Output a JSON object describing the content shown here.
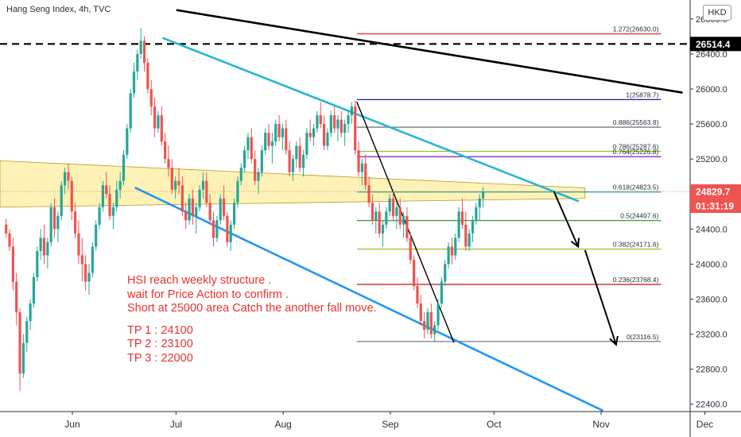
{
  "chart_title": "Hang Seng Index, 4h, TVC",
  "currency_badge": "HKD",
  "current_price": "24829.7",
  "countdown": "01:31:19",
  "marked_level": "26514.4",
  "colors": {
    "bull": "#26a69a",
    "bear": "#ef5350",
    "zone": "#fde87a",
    "upper_channel": "#26b6d0",
    "lower_channel": "#2196f3",
    "trendline": "#000000",
    "annotation": "#e8322b",
    "price_tag": "#ef5350"
  },
  "annotation": {
    "line1": "HSI reach weekly structure .",
    "line2": "wait for Price Action to confirm .",
    "line3": "Short at 25000 area Catch the another fall move.",
    "tp1": "TP 1 : 24100",
    "tp2": "TP 2 : 23100",
    "tp3": "TP 3 : 22000"
  },
  "chart_data": {
    "type": "candlestick",
    "title": "Hang Seng Index, 4h, TVC",
    "y_axis": {
      "min": 22200,
      "max": 26700,
      "ticks": [
        "22400.0",
        "22800.0",
        "23200.0",
        "23600.0",
        "24000.0",
        "24400.0",
        "24800.0",
        "25200.0",
        "25600.0",
        "26000.0",
        "26400.0",
        "26800.0"
      ],
      "tick_values": [
        22400,
        22800,
        23200,
        23600,
        24000,
        24400,
        24800,
        25200,
        25600,
        26000,
        26400,
        26800
      ]
    },
    "x_axis": {
      "labels": [
        "Jun",
        "Jul",
        "Aug",
        "Sep",
        "Oct",
        "Nov",
        "Dec"
      ],
      "label_day_index": [
        10,
        40,
        71,
        102,
        132,
        163,
        193
      ]
    },
    "fibonacci": [
      {
        "label": "1.272(26630.0)",
        "value": 26630.0,
        "color": "#e53935"
      },
      {
        "label": "1(25878.7)",
        "value": 25878.7,
        "color": "#1a237e"
      },
      {
        "label": "0.886(25563.8)",
        "value": 25563.8,
        "color": "#787b86"
      },
      {
        "label": "0.786(25287.6)",
        "value": 25287.6,
        "color": "#9bbf2a"
      },
      {
        "label": "0.764(25226.8)",
        "value": 25226.8,
        "color": "#9c27b0"
      },
      {
        "label": "0.618(24823.5)",
        "value": 24823.5,
        "color": "#26a69a"
      },
      {
        "label": "0.5(24497.6)",
        "value": 24497.6,
        "color": "#43a047"
      },
      {
        "label": "0.382(24171.6)",
        "value": 24171.6,
        "color": "#9bbf2a"
      },
      {
        "label": "0.236(23768.4)",
        "value": 23768.4,
        "color": "#c62828"
      },
      {
        "label": "0(23116.5)",
        "value": 23116.5,
        "color": "#787b86"
      }
    ],
    "fib_start_day": 102,
    "fib_end_day": 190,
    "dashed_level": 26514.4,
    "current_price": 24829.7,
    "resistance_zone": [
      {
        "day": 0,
        "top": 25180,
        "bottom": 24650
      },
      {
        "day": 168,
        "top": 24870,
        "bottom": 24750
      }
    ],
    "lines": [
      {
        "name": "upper-channel",
        "color": "#26b6d0",
        "points": [
          [
            46,
            26580
          ],
          [
            166,
            24720
          ]
        ]
      },
      {
        "name": "lower-channel",
        "color": "#2196f3",
        "points": [
          [
            38,
            24870
          ],
          [
            173,
            22330
          ]
        ]
      },
      {
        "name": "major-downtrend",
        "color": "#000000",
        "points": [
          [
            50,
            26900
          ],
          [
            196,
            25960
          ]
        ]
      },
      {
        "name": "drop-leg",
        "color": "#000000",
        "points": [
          [
            102,
            25850
          ],
          [
            130,
            23110
          ]
        ]
      }
    ],
    "projection_arrows": [
      {
        "from": [
          159,
          24830
        ],
        "to": [
          166,
          24200
        ]
      },
      {
        "from": [
          168,
          24160
        ],
        "to": [
          177,
          23080
        ]
      }
    ],
    "candles_ohlc_daily": [
      [
        24450,
        24520,
        24300,
        24350
      ],
      [
        24350,
        24400,
        24150,
        24200
      ],
      [
        24200,
        24300,
        23700,
        23800
      ],
      [
        23800,
        23900,
        23300,
        23450
      ],
      [
        23450,
        23500,
        22550,
        22750
      ],
      [
        22750,
        23200,
        22700,
        23100
      ],
      [
        23100,
        23400,
        23000,
        23350
      ],
      [
        23350,
        23600,
        23250,
        23550
      ],
      [
        23550,
        23900,
        23500,
        23850
      ],
      [
        23850,
        24200,
        23800,
        24150
      ],
      [
        24150,
        24400,
        24050,
        24300
      ],
      [
        24300,
        24450,
        24000,
        24100
      ],
      [
        24100,
        24300,
        23950,
        24250
      ],
      [
        24250,
        24700,
        24200,
        24650
      ],
      [
        24650,
        24750,
        24300,
        24400
      ],
      [
        24400,
        24600,
        24250,
        24550
      ],
      [
        24550,
        24950,
        24500,
        24900
      ],
      [
        24900,
        25100,
        24800,
        25050
      ],
      [
        25050,
        25150,
        24850,
        24950
      ],
      [
        24950,
        25000,
        24500,
        24600
      ],
      [
        24600,
        24700,
        24300,
        24350
      ],
      [
        24350,
        24500,
        24000,
        24100
      ],
      [
        24100,
        24300,
        23800,
        24000
      ],
      [
        24000,
        24100,
        23700,
        23800
      ],
      [
        23800,
        24000,
        23650,
        23900
      ],
      [
        23900,
        24250,
        23850,
        24200
      ],
      [
        24200,
        24500,
        24150,
        24450
      ],
      [
        24450,
        24700,
        24400,
        24650
      ],
      [
        24650,
        24950,
        24600,
        24900
      ],
      [
        24900,
        25050,
        24750,
        24800
      ],
      [
        24800,
        24900,
        24500,
        24550
      ],
      [
        24550,
        24700,
        24400,
        24650
      ],
      [
        24650,
        24950,
        24600,
        24850
      ],
      [
        24850,
        25050,
        24750,
        24950
      ],
      [
        24950,
        25300,
        24900,
        25250
      ],
      [
        25250,
        25600,
        25200,
        25550
      ],
      [
        25550,
        26000,
        25500,
        25950
      ],
      [
        25950,
        26300,
        25900,
        26200
      ],
      [
        26200,
        26450,
        26100,
        26400
      ],
      [
        26400,
        26700,
        26350,
        26550
      ],
      [
        26550,
        26600,
        26200,
        26300
      ],
      [
        26300,
        26350,
        25950,
        26000
      ],
      [
        26000,
        26100,
        25700,
        25800
      ],
      [
        25800,
        25900,
        25450,
        25550
      ],
      [
        25550,
        25750,
        25500,
        25700
      ],
      [
        25700,
        25800,
        25350,
        25400
      ],
      [
        25400,
        25500,
        25150,
        25200
      ],
      [
        25200,
        25350,
        25000,
        25100
      ],
      [
        25100,
        25200,
        24800,
        24850
      ],
      [
        24850,
        25000,
        24750,
        24950
      ],
      [
        24950,
        25100,
        24800,
        24900
      ],
      [
        24900,
        25000,
        24550,
        24600
      ],
      [
        24600,
        24700,
        24400,
        24500
      ],
      [
        24500,
        24800,
        24450,
        24750
      ],
      [
        24750,
        24850,
        24450,
        24550
      ],
      [
        24550,
        24700,
        24350,
        24650
      ],
      [
        24650,
        24900,
        24600,
        24850
      ],
      [
        24850,
        25050,
        24750,
        24950
      ],
      [
        24950,
        25050,
        24650,
        24700
      ],
      [
        24700,
        24800,
        24450,
        24500
      ],
      [
        24500,
        24600,
        24200,
        24300
      ],
      [
        24300,
        24550,
        24250,
        24500
      ],
      [
        24500,
        24800,
        24450,
        24750
      ],
      [
        24750,
        24900,
        24500,
        24550
      ],
      [
        24550,
        24600,
        24200,
        24250
      ],
      [
        24250,
        24500,
        24150,
        24450
      ],
      [
        24450,
        24750,
        24400,
        24700
      ],
      [
        24700,
        25000,
        24650,
        24950
      ],
      [
        24950,
        25150,
        24900,
        25100
      ],
      [
        25100,
        25350,
        25050,
        25300
      ],
      [
        25300,
        25500,
        25200,
        25450
      ],
      [
        25450,
        25550,
        25150,
        25200
      ],
      [
        25200,
        25300,
        24900,
        24950
      ],
      [
        24950,
        25100,
        24800,
        25050
      ],
      [
        25050,
        25350,
        25000,
        25300
      ],
      [
        25300,
        25550,
        25250,
        25500
      ],
      [
        25500,
        25600,
        25300,
        25350
      ],
      [
        25350,
        25500,
        25150,
        25400
      ],
      [
        25400,
        25650,
        25350,
        25600
      ],
      [
        25600,
        25700,
        25400,
        25450
      ],
      [
        25450,
        25600,
        25300,
        25550
      ],
      [
        25550,
        25650,
        25250,
        25300
      ],
      [
        25300,
        25400,
        25000,
        25050
      ],
      [
        25050,
        25250,
        24950,
        25200
      ],
      [
        25200,
        25400,
        25100,
        25350
      ],
      [
        25350,
        25450,
        25050,
        25100
      ],
      [
        25100,
        25300,
        25000,
        25250
      ],
      [
        25250,
        25550,
        25200,
        25500
      ],
      [
        25500,
        25650,
        25400,
        25450
      ],
      [
        25450,
        25600,
        25350,
        25550
      ],
      [
        25550,
        25750,
        25500,
        25700
      ],
      [
        25700,
        25850,
        25550,
        25600
      ],
      [
        25600,
        25700,
        25300,
        25350
      ],
      [
        25350,
        25550,
        25300,
        25500
      ],
      [
        25500,
        25750,
        25450,
        25700
      ],
      [
        25700,
        25800,
        25500,
        25550
      ],
      [
        25550,
        25700,
        25400,
        25650
      ],
      [
        25650,
        25750,
        25450,
        25500
      ],
      [
        25500,
        25650,
        25350,
        25600
      ],
      [
        25600,
        25750,
        25500,
        25700
      ],
      [
        25700,
        25850,
        25600,
        25800
      ],
      [
        25800,
        25870,
        25250,
        25300
      ],
      [
        25300,
        25400,
        25000,
        25050
      ],
      [
        25050,
        25200,
        24900,
        25150
      ],
      [
        25150,
        25250,
        24850,
        24900
      ],
      [
        24900,
        25000,
        24650,
        24700
      ],
      [
        24700,
        24800,
        24450,
        24500
      ],
      [
        24500,
        24650,
        24350,
        24600
      ],
      [
        24600,
        24700,
        24300,
        24350
      ],
      [
        24350,
        24500,
        24200,
        24450
      ],
      [
        24450,
        24650,
        24400,
        24600
      ],
      [
        24600,
        24800,
        24550,
        24750
      ],
      [
        24750,
        24850,
        24500,
        24550
      ],
      [
        24550,
        24700,
        24400,
        24650
      ],
      [
        24650,
        24750,
        24400,
        24450
      ],
      [
        24450,
        24600,
        24300,
        24550
      ],
      [
        24550,
        24650,
        24250,
        24300
      ],
      [
        24300,
        24350,
        24000,
        24050
      ],
      [
        24050,
        24100,
        23700,
        23750
      ],
      [
        23750,
        23850,
        23500,
        23550
      ],
      [
        23550,
        23650,
        23300,
        23350
      ],
      [
        23350,
        23450,
        23150,
        23250
      ],
      [
        23250,
        23500,
        23200,
        23450
      ],
      [
        23450,
        23550,
        23150,
        23200
      ],
      [
        23200,
        23350,
        23120,
        23300
      ],
      [
        23300,
        23600,
        23250,
        23550
      ],
      [
        23550,
        23850,
        23500,
        23800
      ],
      [
        23800,
        24050,
        23750,
        24000
      ],
      [
        24000,
        24250,
        23950,
        24200
      ],
      [
        24200,
        24300,
        24000,
        24100
      ],
      [
        24100,
        24350,
        24050,
        24300
      ],
      [
        24300,
        24650,
        24250,
        24600
      ],
      [
        24600,
        24750,
        24400,
        24450
      ],
      [
        24450,
        24600,
        24150,
        24200
      ],
      [
        24200,
        24400,
        24150,
        24350
      ],
      [
        24350,
        24550,
        24250,
        24500
      ],
      [
        24500,
        24700,
        24450,
        24650
      ],
      [
        24650,
        24800,
        24500,
        24750
      ],
      [
        24750,
        24880,
        24650,
        24830
      ]
    ]
  }
}
